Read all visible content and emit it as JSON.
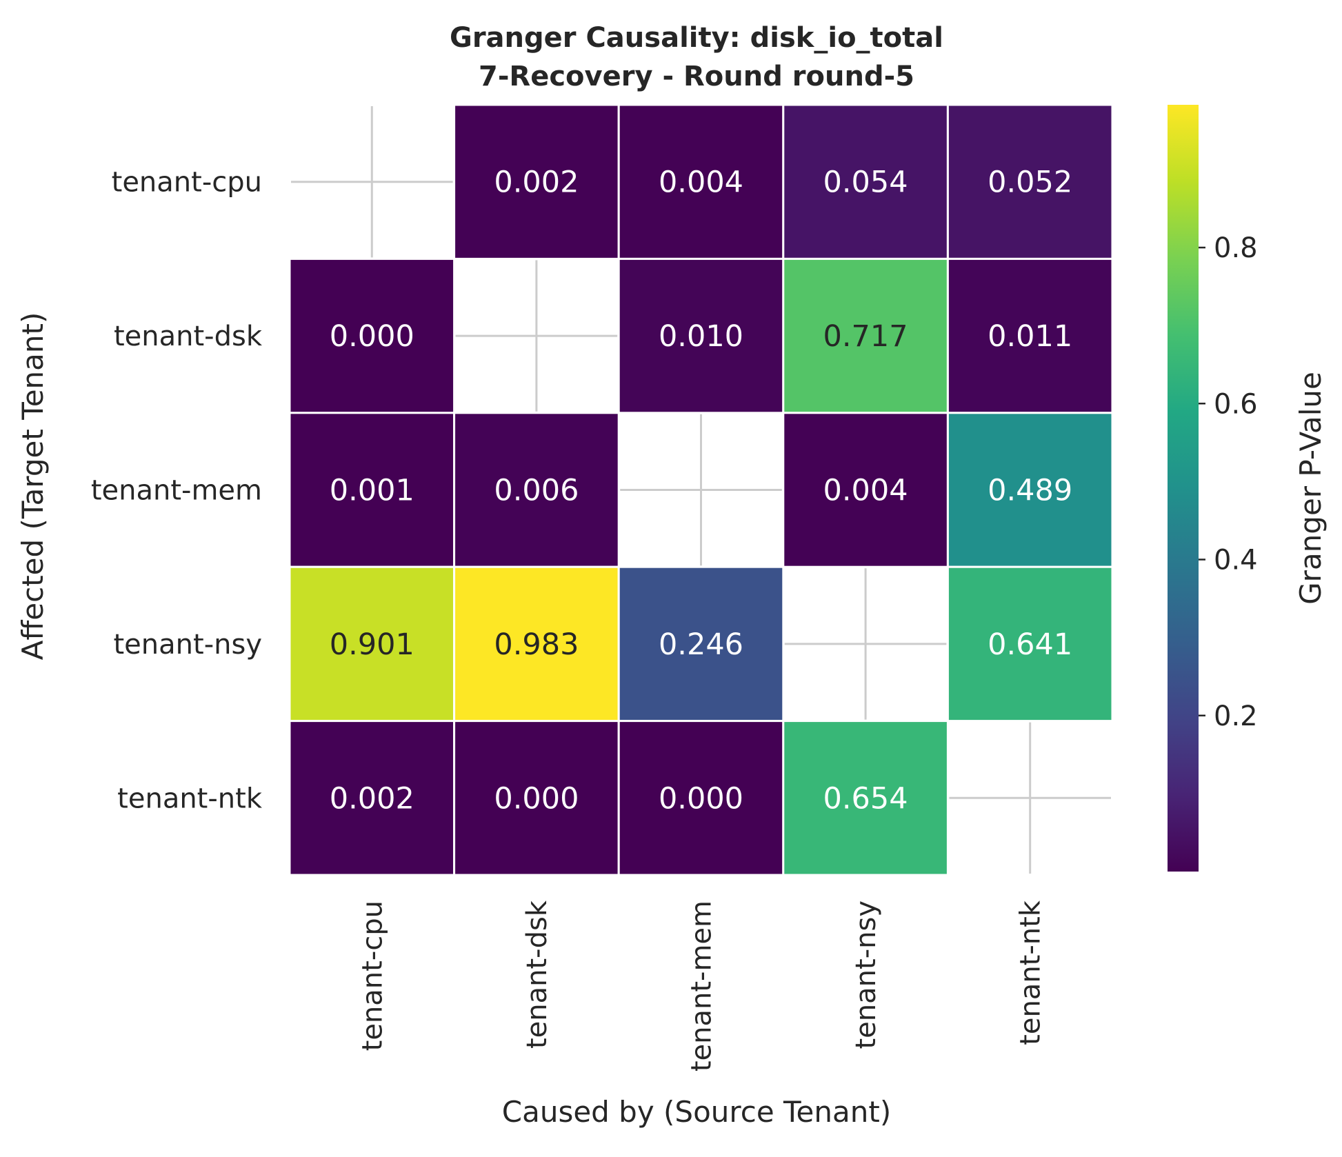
{
  "chart_data": {
    "type": "heatmap",
    "title": "Granger Causality: disk_io_total",
    "subtitle": "7-Recovery - Round round-5",
    "xlabel": "Caused by (Source Tenant)",
    "ylabel": "Affected (Target Tenant)",
    "x_categories": [
      "tenant-cpu",
      "tenant-dsk",
      "tenant-mem",
      "tenant-nsy",
      "tenant-ntk"
    ],
    "y_categories": [
      "tenant-cpu",
      "tenant-dsk",
      "tenant-mem",
      "tenant-nsy",
      "tenant-ntk"
    ],
    "values": [
      [
        null,
        0.002,
        0.004,
        0.054,
        0.052
      ],
      [
        0.0,
        null,
        0.01,
        0.717,
        0.011
      ],
      [
        0.001,
        0.006,
        null,
        0.004,
        0.489
      ],
      [
        0.901,
        0.983,
        0.246,
        null,
        0.641
      ],
      [
        0.002,
        0.0,
        0.0,
        0.654,
        null
      ]
    ],
    "value_labels": [
      [
        "",
        "0.002",
        "0.004",
        "0.054",
        "0.052"
      ],
      [
        "0.000",
        "",
        "0.010",
        "0.717",
        "0.011"
      ],
      [
        "0.001",
        "0.006",
        "",
        "0.004",
        "0.489"
      ],
      [
        "0.901",
        "0.983",
        "0.246",
        "",
        "0.641"
      ],
      [
        "0.002",
        "0.000",
        "0.000",
        "0.654",
        ""
      ]
    ],
    "colorscale": "viridis",
    "vrange": [
      0.0,
      0.983
    ],
    "colorbar": {
      "label": "Granger P-Value",
      "ticks": [
        0.2,
        0.4,
        0.6,
        0.8
      ],
      "tick_labels": [
        "0.2",
        "0.4",
        "0.6",
        "0.8"
      ]
    },
    "grid": true
  }
}
